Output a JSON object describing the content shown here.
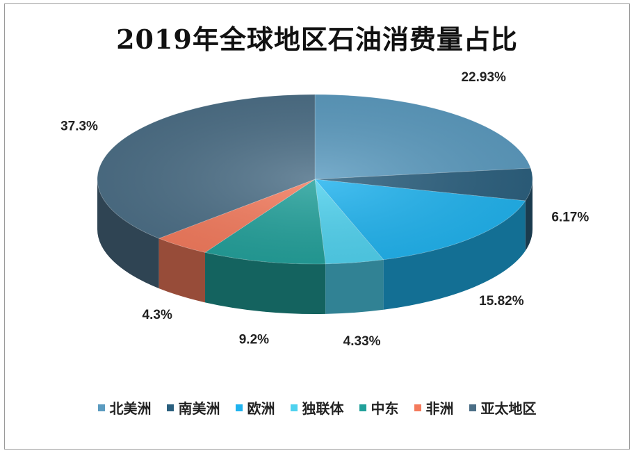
{
  "chart_data": {
    "type": "pie",
    "title": "2019年全球地区石油消费量占比",
    "categories": [
      "北美洲",
      "南美洲",
      "欧洲",
      "独联体",
      "中东",
      "非洲",
      "亚太地区"
    ],
    "values": [
      22.93,
      6.17,
      15.82,
      4.33,
      9.2,
      4.3,
      37.3
    ],
    "labels": [
      "22.93%",
      "6.17%",
      "15.82%",
      "4.33%",
      "9.2%",
      "4.3%",
      "37.3%"
    ],
    "colors": [
      "#5b9bc0",
      "#2a5f7e",
      "#1fb3ef",
      "#4fd2ef",
      "#21a09a",
      "#f47a5c",
      "#4b6e86"
    ],
    "legend_position": "bottom",
    "style": "3d-pie"
  }
}
